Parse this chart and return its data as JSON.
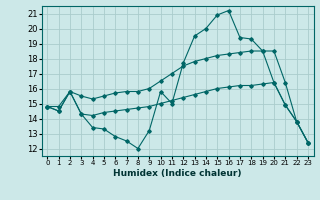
{
  "title": "",
  "xlabel": "Humidex (Indice chaleur)",
  "ylabel": "",
  "background_color": "#cce8e8",
  "grid_color": "#aacccc",
  "line_color": "#006666",
  "xlim": [
    -0.5,
    23.5
  ],
  "ylim": [
    11.5,
    21.5
  ],
  "xticks": [
    0,
    1,
    2,
    3,
    4,
    5,
    6,
    7,
    8,
    9,
    10,
    11,
    12,
    13,
    14,
    15,
    16,
    17,
    18,
    19,
    20,
    21,
    22,
    23
  ],
  "yticks": [
    12,
    13,
    14,
    15,
    16,
    17,
    18,
    19,
    20,
    21
  ],
  "series": [
    [
      14.8,
      14.5,
      15.8,
      14.3,
      13.4,
      13.3,
      12.8,
      12.5,
      12.0,
      13.2,
      15.8,
      15.0,
      17.7,
      19.5,
      20.0,
      20.9,
      21.2,
      19.4,
      19.3,
      18.5,
      16.4,
      14.9,
      13.8,
      12.4
    ],
    [
      14.8,
      14.8,
      15.8,
      15.5,
      15.3,
      15.5,
      15.7,
      15.8,
      15.8,
      16.0,
      16.5,
      17.0,
      17.5,
      17.8,
      18.0,
      18.2,
      18.3,
      18.4,
      18.5,
      18.5,
      18.5,
      16.4,
      13.8,
      12.4
    ],
    [
      14.8,
      14.5,
      15.8,
      14.3,
      14.2,
      14.4,
      14.5,
      14.6,
      14.7,
      14.8,
      15.0,
      15.2,
      15.4,
      15.6,
      15.8,
      16.0,
      16.1,
      16.2,
      16.2,
      16.3,
      16.4,
      14.9,
      13.8,
      12.4
    ]
  ]
}
